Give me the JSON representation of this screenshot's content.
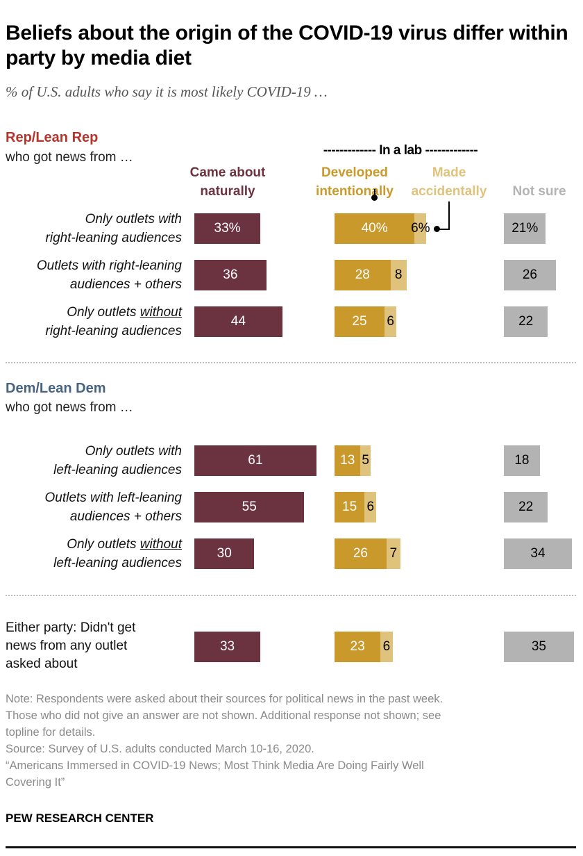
{
  "title": "Beliefs about the origin of the COVID-19 virus differ within party by media diet",
  "subtitle": "% of U.S. adults who say it is most likely COVID-19 …",
  "groups": {
    "rep": {
      "name": "Rep/Lean Rep",
      "sub": "who got news from …"
    },
    "dem": {
      "name": "Dem/Lean Dem",
      "sub": "who got news from …"
    }
  },
  "colors": {
    "naturally": "#6b333f",
    "intentionally": "#c99a2b",
    "accidentally": "#dfc27c",
    "not_sure": "#b3b3b3",
    "rep": "#b5352a",
    "dem": "#466381"
  },
  "chart_data": {
    "type": "bar",
    "title": "Beliefs about the origin of the COVID-19 virus differ within party by media diet",
    "lab_header": "------------- In a lab -------------",
    "series": [
      {
        "key": "naturally",
        "name": "Came about naturally",
        "name_lines": [
          "Came about",
          "naturally"
        ]
      },
      {
        "key": "intentionally",
        "name": "Developed intentionally",
        "name_lines": [
          "Developed",
          "intentionally"
        ]
      },
      {
        "key": "accidentally",
        "name": "Made accidentally",
        "name_lines": [
          "Made",
          "accidentally"
        ]
      },
      {
        "key": "not_sure",
        "name": "Not sure",
        "name_lines": [
          "Not sure"
        ]
      }
    ],
    "rows": [
      {
        "group": "rep",
        "lines": [
          [
            {
              "t": "Only outlets with"
            }
          ],
          [
            {
              "t": "right-leaning audiences"
            }
          ]
        ],
        "values": [
          33,
          40,
          6,
          21
        ],
        "labels": [
          "33%",
          "40%",
          "6%",
          "21%"
        ]
      },
      {
        "group": "rep",
        "lines": [
          [
            {
              "t": "Outlets with right-leaning"
            }
          ],
          [
            {
              "t": "audiences + others"
            }
          ]
        ],
        "values": [
          36,
          28,
          8,
          26
        ],
        "labels": [
          "36",
          "28",
          "8",
          "26"
        ]
      },
      {
        "group": "rep",
        "lines": [
          [
            {
              "t": "Only outlets "
            },
            {
              "t": "without",
              "u": true
            }
          ],
          [
            {
              "t": "right-leaning audiences"
            }
          ]
        ],
        "values": [
          44,
          25,
          6,
          22
        ],
        "labels": [
          "44",
          "25",
          "6",
          "22"
        ]
      },
      {
        "group": "dem",
        "lines": [
          [
            {
              "t": "Only outlets with"
            }
          ],
          [
            {
              "t": "left-leaning audiences"
            }
          ]
        ],
        "values": [
          61,
          13,
          5,
          18
        ],
        "labels": [
          "61",
          "13",
          "5",
          "18"
        ]
      },
      {
        "group": "dem",
        "lines": [
          [
            {
              "t": "Outlets with left-leaning"
            }
          ],
          [
            {
              "t": "audiences + others"
            }
          ]
        ],
        "values": [
          55,
          15,
          6,
          22
        ],
        "labels": [
          "55",
          "15",
          "6",
          "22"
        ]
      },
      {
        "group": "dem",
        "lines": [
          [
            {
              "t": "Only outlets "
            },
            {
              "t": "without",
              "u": true
            }
          ],
          [
            {
              "t": "left-leaning audiences"
            }
          ]
        ],
        "values": [
          30,
          26,
          7,
          34
        ],
        "labels": [
          "30",
          "26",
          "7",
          "34"
        ]
      },
      {
        "group": "either",
        "plain": true,
        "lines": [
          [
            {
              "t": "Either party: Didn't get"
            }
          ],
          [
            {
              "t": "news from any outlet"
            }
          ],
          [
            {
              "t": "asked about"
            }
          ]
        ],
        "values": [
          33,
          23,
          6,
          35
        ],
        "labels": [
          "33",
          "23",
          "6",
          "35"
        ]
      }
    ]
  },
  "notes": [
    "Note: Respondents were asked about their sources for political news in the past week.",
    "Those who did not give an answer are not shown. Additional response not shown; see",
    "topline for details.",
    "Source: Survey of U.S. adults conducted March 10-16, 2020.",
    "“Americans Immersed in COVID-19 News; Most Think Media Are Doing Fairly Well",
    "Covering It”"
  ],
  "brand": "PEW RESEARCH CENTER"
}
